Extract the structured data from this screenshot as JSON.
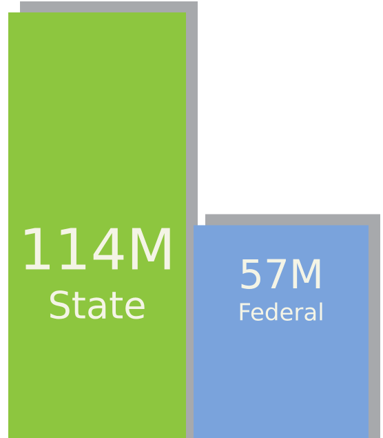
{
  "chart_data": {
    "type": "bar",
    "categories": [
      "State",
      "Federal"
    ],
    "values": [
      114,
      57
    ],
    "value_labels": [
      "114M",
      "57M"
    ],
    "colors": [
      "#8dc63f",
      "#7aa3dc"
    ],
    "shadow_color": "#a7a9ac"
  }
}
